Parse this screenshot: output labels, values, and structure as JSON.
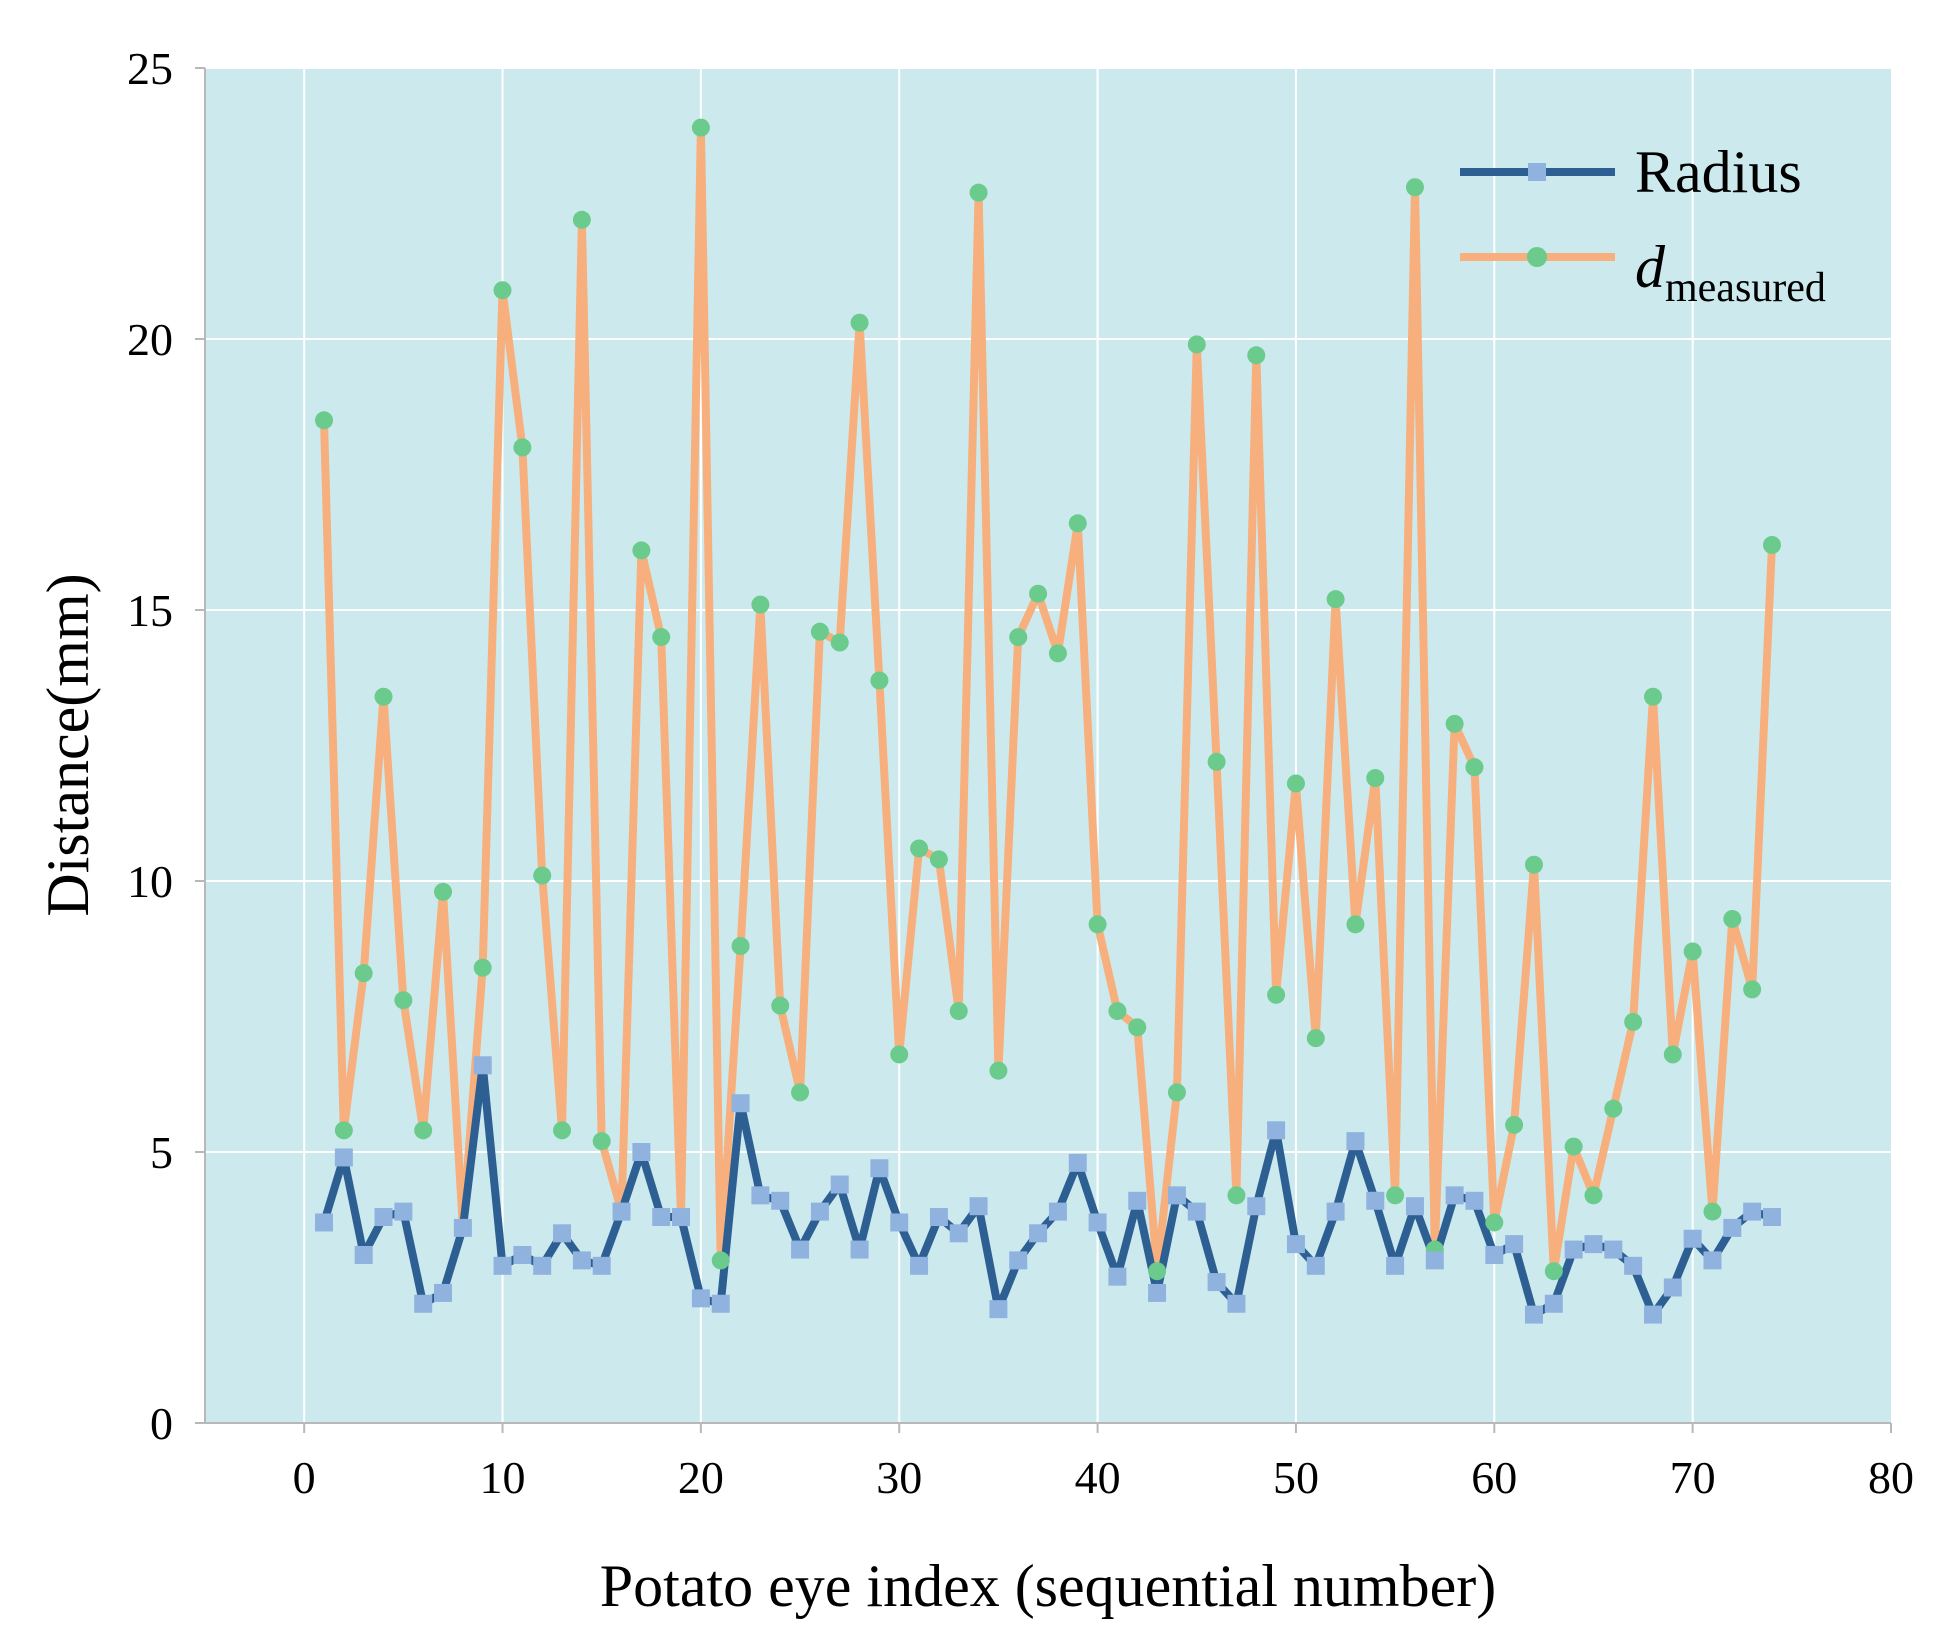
{
  "chart_data": {
    "type": "line",
    "xlabel": "Potato eye index (sequential number)",
    "ylabel": "Distance(mm)",
    "xlim": [
      -5,
      80
    ],
    "ylim": [
      0,
      25
    ],
    "x_ticks": [
      0,
      10,
      20,
      30,
      40,
      50,
      60,
      70,
      80
    ],
    "y_ticks": [
      0,
      5,
      10,
      15,
      20,
      25
    ],
    "grid": true,
    "legend_position": "top-right",
    "colors": {
      "plot_background": "#cceaee",
      "grid": "#ffffff",
      "axis": "#b8b8b8"
    },
    "x": [
      1,
      2,
      3,
      4,
      5,
      6,
      7,
      8,
      9,
      10,
      11,
      12,
      13,
      14,
      15,
      16,
      17,
      18,
      19,
      20,
      21,
      22,
      23,
      24,
      25,
      26,
      27,
      28,
      29,
      30,
      31,
      32,
      33,
      34,
      35,
      36,
      37,
      38,
      39,
      40,
      41,
      42,
      43,
      44,
      45,
      46,
      47,
      48,
      49,
      50,
      51,
      52,
      53,
      54,
      55,
      56,
      57,
      58,
      59,
      60,
      61,
      62,
      63,
      64,
      65,
      66,
      67,
      68,
      69,
      70,
      71,
      72,
      73,
      74
    ],
    "series": [
      {
        "name": "Radius",
        "line_color": "#2e5f93",
        "marker_color": "#8fb3de",
        "marker": "square",
        "values": [
          3.7,
          4.9,
          3.1,
          3.8,
          3.9,
          2.2,
          2.4,
          3.6,
          6.6,
          2.9,
          3.1,
          2.9,
          3.5,
          3.0,
          2.9,
          3.9,
          5.0,
          3.8,
          3.8,
          2.3,
          2.2,
          5.9,
          4.2,
          4.1,
          3.2,
          3.9,
          4.4,
          3.2,
          4.7,
          3.7,
          2.9,
          3.8,
          3.5,
          4.0,
          2.1,
          3.0,
          3.5,
          3.9,
          4.8,
          3.7,
          2.7,
          4.1,
          2.4,
          4.2,
          3.9,
          2.6,
          2.2,
          4.0,
          5.4,
          3.3,
          2.9,
          3.9,
          5.2,
          4.1,
          2.9,
          4.0,
          3.0,
          4.2,
          4.1,
          3.1,
          3.3,
          2.0,
          2.2,
          3.2,
          3.3,
          3.2,
          2.9,
          2.0,
          2.5,
          3.4,
          3.0,
          3.6,
          3.9,
          3.8
        ]
      },
      {
        "name": "d",
        "name_subscript": "measured",
        "line_color": "#f7b07d",
        "marker_color": "#6acb8d",
        "marker": "circle",
        "values": [
          18.5,
          5.4,
          8.3,
          13.4,
          7.8,
          5.4,
          9.8,
          3.6,
          8.4,
          20.9,
          18.0,
          10.1,
          5.4,
          22.2,
          5.2,
          3.9,
          16.1,
          14.5,
          3.8,
          23.9,
          3.0,
          8.8,
          15.1,
          7.7,
          6.1,
          14.6,
          14.4,
          20.3,
          13.7,
          6.8,
          10.6,
          10.4,
          7.6,
          22.7,
          6.5,
          14.5,
          15.3,
          14.2,
          16.6,
          9.2,
          7.6,
          7.3,
          2.8,
          6.1,
          19.9,
          12.2,
          4.2,
          19.7,
          7.9,
          11.8,
          7.1,
          15.2,
          9.2,
          11.9,
          4.2,
          22.8,
          3.2,
          12.9,
          12.1,
          3.7,
          5.5,
          10.3,
          2.8,
          5.1,
          4.2,
          5.8,
          7.4,
          13.4,
          6.8,
          8.7,
          3.9,
          9.3,
          8.0,
          16.2
        ]
      }
    ]
  }
}
